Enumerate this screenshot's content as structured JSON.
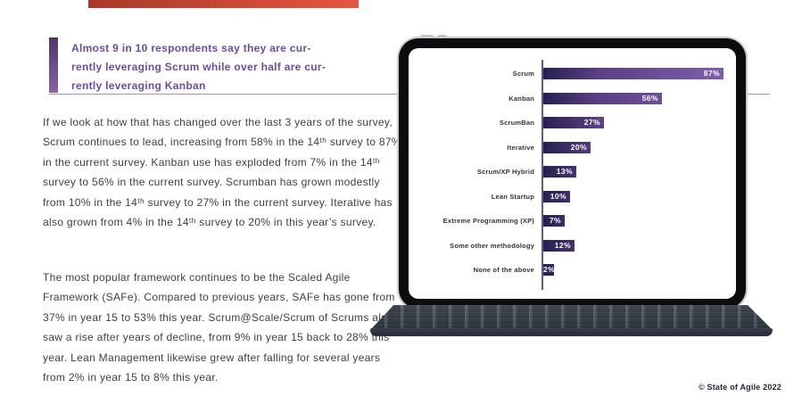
{
  "page": {
    "copyright": "© State of Agile 2022"
  },
  "theme": {
    "page_bg": "#ffffff",
    "top_bar_from": "#a9382a",
    "top_bar_to": "#e4573f",
    "quote_bar_from": "#4f3468",
    "quote_bar_to": "#8765a6",
    "quote_text": "#6a4da1",
    "divider": "#a78bc1",
    "body_text": "#3e3e44",
    "copyright_text": "#1e2438",
    "axis": "#6b5191",
    "category_text": "#33333c",
    "bar_value_text": "#ffffff"
  },
  "quote": {
    "lines": [
      "Almost 9 in 10 respondents say they are cur-",
      "rently leveraging Scrum while over half are cur-",
      "rently leveraging Kanban"
    ]
  },
  "paragraphs": [
    "If we look at how that has changed over the last 3 years of the survey, Scrum continues to lead, increasing from 58% in the 14ᵗʰ survey to 87% in the current survey. Kanban use has exploded from 7% in the 14ᵗʰ survey to 56% in the current survey. Scrumban has grown modestly from 10% in the 14ᵗʰ survey to 27% in the current survey. Iterative has also grown from 4% in the 14ᵗʰ survey to 20% in this year’s survey.",
    "The most popular framework continues to be the Scaled Agile Framework (SAFe). Compared to previous years, SAFe has gone from 37% in year 15 to 53% this year. Scrum@Scale/Scrum of Scrums also saw a rise after years of decline, from 9% in year 15 back to 28% this year. Lean Management likewise grew after falling for several years from 2% in year 15 to 8% this year."
  ],
  "chart_data": {
    "type": "bar",
    "orientation": "horizontal",
    "categories": [
      "Scrum",
      "Kanban",
      "ScrumBan",
      "Iterative",
      "Scrum/XP Hybrid",
      "Lean Startup",
      "Extreme Programming (XP)",
      "Some other methodology",
      "None of the above"
    ],
    "values": [
      87,
      56,
      27,
      20,
      13,
      10,
      7,
      12,
      2
    ],
    "value_labels": [
      "87%",
      "56%",
      "27%",
      "20%",
      "13%",
      "10%",
      "7%",
      "12%",
      "2%"
    ],
    "max_value": 87,
    "xlim": [
      0,
      100
    ],
    "grid": false,
    "legend": "none",
    "value_label_position": "inside-end",
    "bar_gradient": [
      "#262050",
      "#5a3f82",
      "#7e5fab"
    ]
  }
}
